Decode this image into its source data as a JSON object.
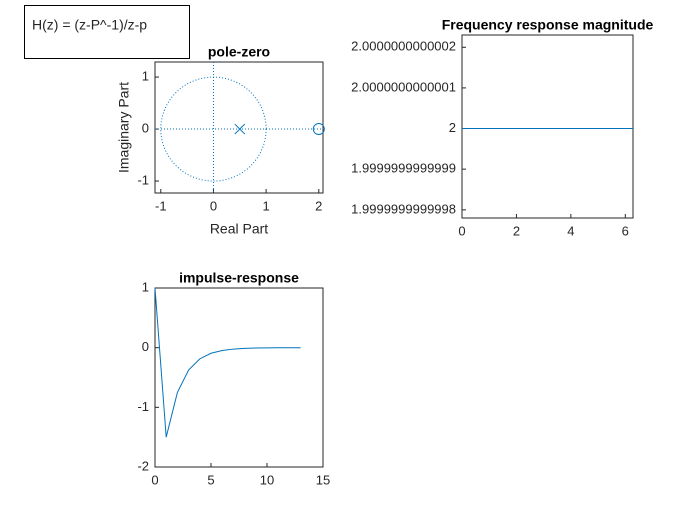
{
  "text_box": {
    "text": "H(z) = (z-P^-1)/z-p"
  },
  "chart_data": [
    {
      "type": "scatter",
      "title": "pole-zero",
      "x_label": "Real Part",
      "y_label": "Imaginary Part",
      "xlim": [
        -1.11,
        2.08
      ],
      "ylim": [
        -1.23,
        1.29
      ],
      "xticks": [
        -1,
        0,
        1,
        2
      ],
      "yticks": [
        -1,
        0,
        1
      ],
      "series": [
        {
          "marker": "x",
          "color": "#0072bd",
          "x": [
            0.5
          ],
          "values": [
            0
          ]
        },
        {
          "marker": "o",
          "color": "#0072bd",
          "x": [
            2
          ],
          "values": [
            0
          ]
        }
      ]
    },
    {
      "type": "line",
      "title": "Frequency response magnitude",
      "xlim": [
        0,
        6.2832
      ],
      "ylim": [
        1.99999999999978,
        2.00000000000023
      ],
      "xticks": [
        0,
        2,
        4,
        6
      ],
      "yticks": [
        1.9999999999998,
        1.9999999999999,
        2,
        2.0000000000001,
        2.0000000000002
      ],
      "series": [
        {
          "color": "#0072bd",
          "x": [
            0,
            6.2832
          ],
          "values": [
            2,
            2
          ]
        }
      ]
    },
    {
      "type": "line",
      "title": "impulse-response",
      "xlim": [
        0,
        15
      ],
      "ylim": [
        -2,
        1
      ],
      "xticks": [
        0,
        5,
        10,
        15
      ],
      "yticks": [
        -2,
        -1,
        0,
        1
      ],
      "series": [
        {
          "color": "#0072bd",
          "x": [
            0,
            1,
            2,
            3,
            4,
            5,
            6,
            7,
            8,
            9,
            10,
            11,
            12,
            13
          ],
          "values": [
            1,
            -1.5,
            -0.75,
            -0.375,
            -0.1875,
            -0.09375,
            -0.046875,
            -0.0234375,
            -0.01171875,
            -0.005859375,
            -0.0029296875,
            -0.00146484375,
            -0.000732421875,
            -0.0003662109375
          ]
        }
      ]
    }
  ]
}
